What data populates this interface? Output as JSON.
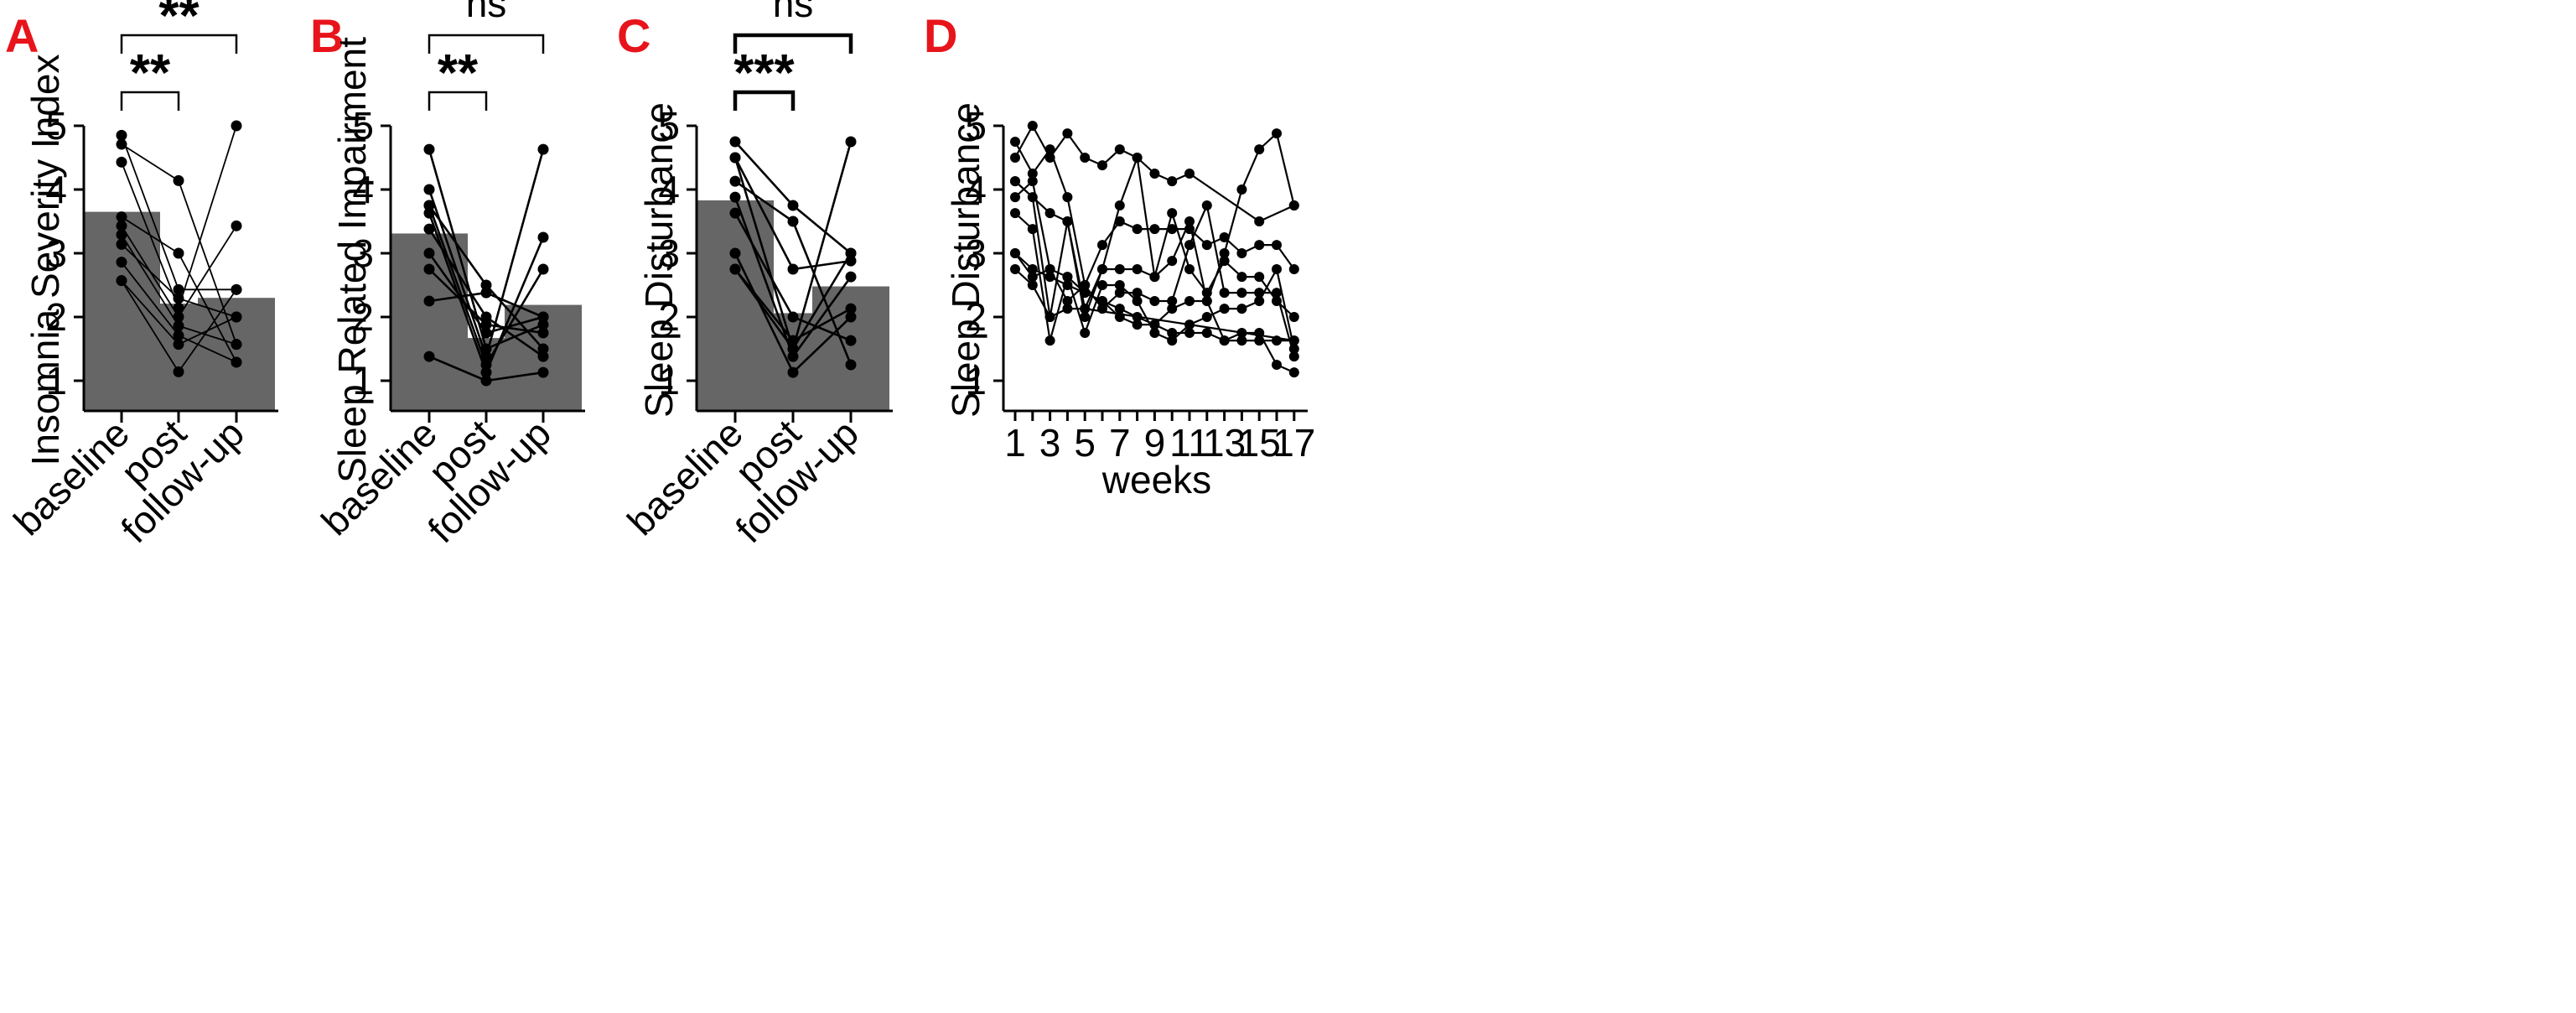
{
  "chart_data": [
    {
      "panel": "A",
      "type": "bar",
      "ylabel": "Insomnia Severity Index",
      "xlabel": "",
      "categories": [
        "baseline",
        "post",
        "follow-up"
      ],
      "bar_values": [
        3.65,
        2.21,
        2.3
      ],
      "ylim": [
        0.5,
        5
      ],
      "yticks": [
        1,
        2,
        3,
        4,
        5
      ],
      "bar_color": "#666666",
      "subjects": [
        [
          4.85,
          2.43,
          2.43
        ],
        [
          4.71,
          4.14,
          1.57
        ],
        [
          4.43,
          2.14,
          5.0
        ],
        [
          3.57,
          3.0,
          1.29
        ],
        [
          3.43,
          2.0,
          3.43
        ],
        [
          3.29,
          1.86,
          1.57
        ],
        [
          3.14,
          2.29,
          2.0
        ],
        [
          2.86,
          1.71,
          1.29
        ],
        [
          2.57,
          1.57,
          2.0
        ],
        [
          2.57,
          1.14,
          2.43
        ]
      ],
      "line_weight": "thin",
      "comparisons": [
        {
          "from": 0,
          "to": 1,
          "label": "**",
          "level": 1
        },
        {
          "from": 0,
          "to": 2,
          "label": "**",
          "level": 2
        }
      ]
    },
    {
      "panel": "B",
      "type": "bar",
      "ylabel": "Sleep Related Impairment",
      "xlabel": "",
      "categories": [
        "baseline",
        "post",
        "follow-up"
      ],
      "bar_values": [
        3.31,
        1.67,
        2.19
      ],
      "ylim": [
        0.5,
        5
      ],
      "yticks": [
        1,
        2,
        3,
        4,
        5
      ],
      "bar_color": "#666666",
      "subjects": [
        [
          4.63,
          1.5,
          1.88
        ],
        [
          4.0,
          1.38,
          4.63
        ],
        [
          3.75,
          1.25,
          2.75
        ],
        [
          3.75,
          2.5,
          1.5
        ],
        [
          3.63,
          1.13,
          3.25
        ],
        [
          3.38,
          2.0,
          1.38
        ],
        [
          2.75,
          1.88,
          1.75
        ],
        [
          2.25,
          2.38,
          2.0
        ],
        [
          1.38,
          1.0,
          1.13
        ],
        [
          3.0,
          1.75,
          2.0
        ]
      ],
      "line_weight": "medium",
      "comparisons": [
        {
          "from": 0,
          "to": 1,
          "label": "**",
          "level": 1
        },
        {
          "from": 0,
          "to": 2,
          "label": "ns",
          "level": 2
        }
      ]
    },
    {
      "panel": "C",
      "type": "bar",
      "ylabel": "Sleep Disturbance",
      "xlabel": "",
      "categories": [
        "baseline",
        "post",
        "follow-up"
      ],
      "bar_values": [
        3.83,
        2.06,
        2.48
      ],
      "ylim": [
        0.5,
        5
      ],
      "yticks": [
        1,
        2,
        3,
        4,
        5
      ],
      "bar_color": "#666666",
      "subjects": [
        [
          4.75,
          3.75,
          3.0
        ],
        [
          4.5,
          1.5,
          4.75
        ],
        [
          4.5,
          2.75,
          2.88
        ],
        [
          4.13,
          3.5,
          1.25
        ],
        [
          3.88,
          1.38,
          2.63
        ],
        [
          3.63,
          2.0,
          1.63
        ],
        [
          3.0,
          1.13,
          2.0
        ],
        [
          2.75,
          1.5,
          3.0
        ],
        [
          2.75,
          1.63,
          2.13
        ]
      ],
      "line_weight": "medium",
      "comparisons": [
        {
          "from": 0,
          "to": 1,
          "label": "***",
          "level": 1
        },
        {
          "from": 0,
          "to": 2,
          "label": "ns",
          "level": 2
        }
      ]
    },
    {
      "panel": "D",
      "type": "line",
      "ylabel": "Sleep Disturbance",
      "xlabel": "weeks",
      "xticks": [
        1,
        3,
        5,
        7,
        9,
        11,
        13,
        15,
        17
      ],
      "xlim": [
        0.5,
        17.5
      ],
      "ylim": [
        0.5,
        5
      ],
      "yticks": [
        1,
        2,
        3,
        4,
        5
      ],
      "series": [
        {
          "x": [
            1,
            2,
            3,
            4,
            5,
            6,
            7,
            8,
            9,
            10,
            11,
            15,
            17
          ],
          "values": [
            4.5,
            5.0,
            4.5,
            4.88,
            4.5,
            4.38,
            4.63,
            4.5,
            4.25,
            4.13,
            4.25,
            3.5,
            3.75
          ]
        },
        {
          "x": [
            1,
            2,
            3,
            4,
            5,
            6,
            7,
            8,
            9,
            10,
            11,
            12,
            13,
            14,
            15,
            16,
            17
          ],
          "values": [
            4.75,
            4.25,
            4.63,
            3.88,
            2.5,
            3.13,
            3.5,
            3.38,
            3.38,
            3.38,
            3.38,
            3.13,
            3.25,
            3.0,
            3.13,
            3.13,
            2.75
          ]
        },
        {
          "x": [
            1,
            3,
            4,
            5,
            6,
            7,
            8,
            9,
            10,
            11,
            12,
            13,
            14,
            15,
            16,
            17
          ],
          "values": [
            4.13,
            3.63,
            3.5,
            2.13,
            2.75,
            3.75,
            4.5,
            2.63,
            2.88,
            3.5,
            2.25,
            3.0,
            4.0,
            4.63,
            4.88,
            3.75
          ]
        },
        {
          "x": [
            1,
            2,
            3,
            4,
            5,
            6,
            7,
            8,
            9,
            10,
            11,
            12,
            13,
            14,
            15,
            16,
            17
          ],
          "values": [
            4.13,
            3.88,
            2.0,
            3.5,
            2.0,
            2.75,
            2.75,
            2.75,
            2.63,
            3.63,
            2.75,
            2.38,
            2.88,
            2.63,
            2.63,
            2.25,
            2.0
          ]
        },
        {
          "x": [
            1,
            2,
            3,
            4,
            5,
            6,
            7,
            8,
            9,
            10,
            11,
            12,
            13,
            14,
            15,
            16,
            17
          ],
          "values": [
            3.88,
            4.13,
            2.75,
            2.25,
            2.5,
            2.13,
            2.38,
            2.38,
            2.25,
            2.25,
            3.13,
            3.75,
            2.38,
            2.38,
            2.38,
            2.38,
            1.38
          ]
        },
        {
          "x": [
            1,
            2,
            3,
            4,
            5,
            6,
            7,
            8,
            9,
            10,
            11,
            12,
            13,
            14,
            15,
            16,
            17
          ],
          "values": [
            3.63,
            3.38,
            1.63,
            2.63,
            1.75,
            2.5,
            2.5,
            2.25,
            1.75,
            1.63,
            1.88,
            2.0,
            2.13,
            2.13,
            2.25,
            2.75,
            1.5
          ]
        },
        {
          "x": [
            1,
            2,
            3,
            4,
            5,
            6,
            7,
            8,
            9,
            10,
            11,
            12,
            13,
            14,
            15,
            16,
            17
          ],
          "values": [
            3.0,
            2.63,
            2.75,
            2.63,
            2.38,
            2.25,
            2.0,
            1.88,
            1.88,
            2.13,
            2.25,
            2.25,
            1.63,
            1.75,
            1.75,
            1.25,
            1.13
          ]
        },
        {
          "x": [
            1,
            2,
            3,
            4,
            5,
            17
          ],
          "values": [
            2.75,
            2.5,
            2.0,
            2.13,
            2.13,
            1.63
          ]
        },
        {
          "x": [
            1,
            2,
            3,
            4,
            5,
            6,
            7,
            8,
            9,
            10,
            11,
            12,
            13,
            14,
            15,
            16,
            17
          ],
          "values": [
            3.0,
            2.75,
            2.63,
            2.5,
            2.38,
            2.25,
            2.13,
            2.0,
            1.88,
            1.75,
            1.75,
            1.75,
            1.63,
            1.63,
            1.63,
            1.63,
            1.63
          ]
        }
      ]
    }
  ]
}
